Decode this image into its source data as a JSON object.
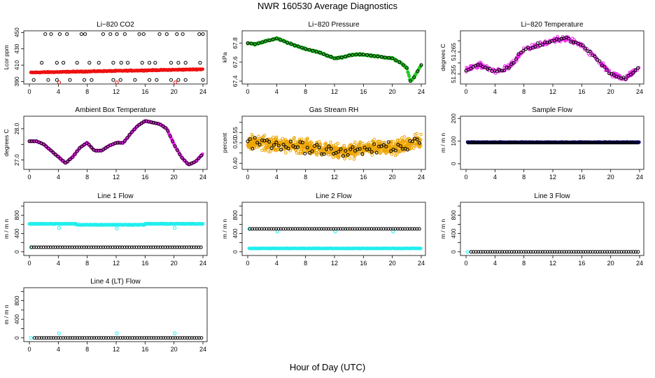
{
  "title": "NWR  160530  Average Diagnostics",
  "x_caption": "Hour of Day (UTC)",
  "colors": {
    "red": "#ee1111",
    "green": "#22cc22",
    "magenta": "#ee22ee",
    "orange": "#eea500",
    "navy": "#000088",
    "cyan": "#22eeee",
    "black": "#000000"
  },
  "chart_data": [
    {
      "type": "scatter",
      "title": "Li−820 CO2",
      "ylabel": "Lcor ppm",
      "xlim": [
        0,
        24
      ],
      "xticks": [
        "0",
        "4",
        "8",
        "12",
        "16",
        "20",
        "24"
      ],
      "ylim": [
        387,
        452
      ],
      "yticks": [
        390,
        410,
        430,
        450
      ],
      "series": [
        {
          "name": "co2-red",
          "color": "red",
          "kind": "band",
          "y0": 401,
          "y1": 405,
          "noise": 0.8
        },
        {
          "name": "co2-high",
          "color": "black",
          "kind": "points",
          "x": [
            2.2,
            3.0,
            4.2,
            5.2,
            7.2,
            7.7,
            10.2,
            11.2,
            12.1,
            13.2,
            15.2,
            15.8,
            18.0,
            19.0,
            20.4,
            21.2,
            23.5,
            24.0
          ],
          "y": [
            448,
            448,
            448,
            448,
            448,
            448,
            448,
            448,
            448,
            448,
            448,
            448,
            448,
            448,
            448,
            448,
            448,
            448
          ]
        },
        {
          "name": "co2-mid",
          "color": "black",
          "kind": "points",
          "x": [
            1.7,
            3.8,
            4.7,
            6.6,
            8.3,
            9.6,
            11.6,
            12.7,
            13.6,
            15.6,
            16.6,
            17.4,
            19.6,
            20.6,
            21.6,
            23.6
          ],
          "y": [
            413,
            413,
            413,
            413,
            413,
            413,
            413,
            413,
            413,
            413,
            413,
            413,
            413,
            413,
            413,
            413
          ]
        },
        {
          "name": "co2-low",
          "color": "black",
          "kind": "points",
          "x": [
            0.6,
            2.6,
            3.8,
            5.6,
            7.6,
            8.6,
            11.6,
            12.6,
            14.6,
            16.6,
            17.6,
            19.6,
            20.6,
            21.6,
            24.0
          ],
          "y": [
            392,
            392,
            392,
            392,
            392,
            392,
            392,
            392,
            392,
            392,
            392,
            392,
            392,
            392,
            392
          ]
        },
        {
          "name": "co2-lowered",
          "color": "red",
          "kind": "points",
          "x": [
            4.1,
            12.1,
            20.2
          ],
          "y": [
            389,
            389,
            389
          ]
        }
      ]
    },
    {
      "type": "line",
      "title": "Li−820 Pressure",
      "ylabel": "kPa",
      "xlim": [
        0,
        24
      ],
      "xticks": [
        "0",
        "4",
        "8",
        "12",
        "16",
        "20",
        "24"
      ],
      "ylim": [
        67.37,
        67.93
      ],
      "yticks": [
        67.4,
        67.6,
        67.8
      ],
      "series": [
        {
          "name": "pressure-green",
          "color": "green",
          "kind": "curve",
          "noise": 0.012,
          "x": [
            0,
            1,
            2,
            3,
            4,
            5,
            6,
            8,
            10,
            12,
            13,
            14,
            15,
            16,
            18,
            20,
            21,
            22,
            22.5,
            23,
            24
          ],
          "y": [
            67.8,
            67.79,
            67.81,
            67.83,
            67.85,
            67.82,
            67.79,
            67.74,
            67.7,
            67.64,
            67.65,
            67.67,
            67.68,
            67.68,
            67.66,
            67.64,
            67.6,
            67.54,
            67.4,
            67.44,
            67.57
          ]
        },
        {
          "name": "pressure-black",
          "color": "black",
          "kind": "curvepts",
          "step": 0.5
        }
      ]
    },
    {
      "type": "scatter",
      "title": "Li−820 Temperature",
      "ylabel": "degrees C",
      "xlim": [
        0,
        24
      ],
      "xticks": [
        "0",
        "4",
        "8",
        "12",
        "16",
        "20",
        "24"
      ],
      "ylim": [
        51.2505,
        51.2745
      ],
      "yticks": [
        51.255,
        51.26,
        51.265,
        51.27
      ],
      "yticklabels": [
        "51.255",
        "",
        "51.265",
        ""
      ],
      "series": [
        {
          "name": "temp-magenta",
          "color": "magenta",
          "kind": "cloud",
          "noise": 0.0018,
          "n": 320,
          "x": [
            0,
            2,
            4,
            6,
            8,
            10,
            12,
            14,
            16,
            18,
            20,
            22,
            24
          ],
          "y": [
            51.257,
            51.259,
            51.256,
            51.258,
            51.266,
            51.268,
            51.27,
            51.271,
            51.268,
            51.262,
            51.255,
            51.253,
            51.258
          ]
        },
        {
          "name": "temp-black",
          "color": "black",
          "kind": "curvepts",
          "step": 0.33,
          "jitter": 0.0012
        }
      ]
    },
    {
      "type": "line",
      "title": "Ambient Box Temperature",
      "ylabel": "degrees C",
      "xlim": [
        0,
        24
      ],
      "xticks": [
        "0",
        "4",
        "8",
        "12",
        "16",
        "20",
        "24"
      ],
      "ylim": [
        26.7,
        28.4
      ],
      "yticks": [
        27.0,
        27.5,
        28.0
      ],
      "yticklabels": [
        "27.0",
        "",
        "28.0"
      ],
      "series": [
        {
          "name": "box-magenta",
          "color": "magenta",
          "kind": "curve",
          "noise": 0.02,
          "x": [
            0,
            1,
            2,
            3,
            4,
            5,
            6,
            7,
            8,
            9,
            10,
            11,
            12,
            13,
            14,
            15,
            16,
            17,
            18,
            19,
            20,
            21,
            22,
            23,
            24
          ],
          "y": [
            27.6,
            27.6,
            27.5,
            27.3,
            27.1,
            26.9,
            27.1,
            27.4,
            27.55,
            27.3,
            27.3,
            27.45,
            27.55,
            27.55,
            27.85,
            28.1,
            28.25,
            28.2,
            28.15,
            28.0,
            27.5,
            27.1,
            26.85,
            26.95,
            27.2
          ]
        },
        {
          "name": "box-black",
          "color": "black",
          "kind": "curvepts",
          "step": 0.33
        }
      ]
    },
    {
      "type": "scatter",
      "title": "Gas Stream RH",
      "ylabel": "percent",
      "xlim": [
        0,
        24
      ],
      "xticks": [
        "0",
        "4",
        "8",
        "12",
        "16",
        "20",
        "24"
      ],
      "ylim": [
        0.37,
        0.63
      ],
      "yticks": [
        0.4,
        0.45,
        0.5,
        0.55,
        0.6
      ],
      "yticklabels": [
        "0.40",
        "",
        "0.50",
        "0.55",
        ""
      ],
      "series": [
        {
          "name": "rh-orange",
          "color": "orange",
          "kind": "cloud",
          "noise": 0.05,
          "n": 900,
          "x": [
            0,
            2,
            4,
            6,
            8,
            10,
            12,
            14,
            16,
            18,
            20,
            22,
            24
          ],
          "y": [
            0.5,
            0.5,
            0.49,
            0.49,
            0.48,
            0.47,
            0.46,
            0.46,
            0.47,
            0.48,
            0.48,
            0.49,
            0.51
          ]
        },
        {
          "name": "rh-black",
          "color": "black",
          "kind": "curvepts",
          "step": 0.33,
          "jitter": 0.04
        }
      ]
    },
    {
      "type": "line",
      "title": "Sample Flow",
      "ylabel": "m / m n",
      "xlim": [
        0,
        24
      ],
      "xticks": [
        "0",
        "4",
        "8",
        "12",
        "16",
        "20",
        "24"
      ],
      "ylim": [
        -25,
        210
      ],
      "yticks": [
        0,
        100,
        200
      ],
      "series": [
        {
          "name": "sample-navy",
          "color": "navy",
          "kind": "flat",
          "y": 95,
          "noise": 2
        },
        {
          "name": "sample-black",
          "color": "black",
          "kind": "flatpts",
          "y": 93,
          "step": 0.25
        }
      ]
    },
    {
      "type": "line",
      "title": "Line 1 Flow",
      "ylabel": "m / m n",
      "xlim": [
        0,
        24
      ],
      "xticks": [
        "0",
        "4",
        "8",
        "12",
        "16",
        "20",
        "24"
      ],
      "ylim": [
        -80,
        1080
      ],
      "yticks": [
        0,
        200,
        400,
        600,
        800,
        1000
      ],
      "yticklabels": [
        "0",
        "",
        "400",
        "",
        "800",
        ""
      ],
      "series": [
        {
          "name": "l1-cyan-band",
          "color": "cyan",
          "kind": "segments",
          "segs": [
            [
              0,
              6.5,
              610
            ],
            [
              6.5,
              16,
              590
            ],
            [
              16,
              24,
              610
            ]
          ],
          "noise": 8
        },
        {
          "name": "l1-cyan-dips",
          "color": "cyan",
          "kind": "points",
          "x": [
            4.1,
            12.1,
            20.1
          ],
          "y": [
            520,
            510,
            520
          ]
        },
        {
          "name": "l1-cyan-low",
          "color": "cyan",
          "kind": "points",
          "x": [
            0.2
          ],
          "y": [
            100
          ]
        },
        {
          "name": "l1-black",
          "color": "black",
          "kind": "flatpts",
          "y": 100,
          "step": 0.33
        }
      ]
    },
    {
      "type": "line",
      "title": "Line 2 Flow",
      "ylabel": "m / m n",
      "xlim": [
        0,
        24
      ],
      "xticks": [
        "0",
        "4",
        "8",
        "12",
        "16",
        "20",
        "24"
      ],
      "ylim": [
        -80,
        1080
      ],
      "yticks": [
        0,
        200,
        400,
        600,
        800,
        1000
      ],
      "yticklabels": [
        "0",
        "",
        "400",
        "",
        "800",
        ""
      ],
      "series": [
        {
          "name": "l2-cyan-low",
          "color": "cyan",
          "kind": "flat",
          "y": 75,
          "noise": 6
        },
        {
          "name": "l2-cyan-high",
          "color": "cyan",
          "kind": "points",
          "x": [
            0.2,
            4.1,
            12.1,
            20.1
          ],
          "y": [
            500,
            440,
            440,
            440
          ]
        },
        {
          "name": "l2-black",
          "color": "black",
          "kind": "flatpts",
          "y": 500,
          "step": 0.33
        }
      ]
    },
    {
      "type": "line",
      "title": "Line 3 Flow",
      "ylabel": "m / m n",
      "xlim": [
        0,
        24
      ],
      "xticks": [
        "0",
        "4",
        "8",
        "12",
        "16",
        "20",
        "24"
      ],
      "ylim": [
        -80,
        1080
      ],
      "yticks": [
        0,
        200,
        400,
        600,
        800,
        1000
      ],
      "yticklabels": [
        "0",
        "",
        "400",
        "",
        "800",
        ""
      ],
      "series": [
        {
          "name": "l3-cyan",
          "color": "cyan",
          "kind": "points",
          "x": [
            0.2
          ],
          "y": [
            0
          ]
        },
        {
          "name": "l3-black",
          "color": "black",
          "kind": "flatpts",
          "y": 0,
          "step": 0.33,
          "from": 0.7
        }
      ]
    },
    {
      "type": "line",
      "title": "Line 4 (LT) Flow",
      "ylabel": "m / m n",
      "xlim": [
        0,
        24
      ],
      "xticks": [
        "0",
        "4",
        "8",
        "12",
        "16",
        "20",
        "24"
      ],
      "ylim": [
        -80,
        1080
      ],
      "yticks": [
        0,
        200,
        400,
        600,
        800,
        1000
      ],
      "yticklabels": [
        "0",
        "",
        "400",
        "",
        "800",
        ""
      ],
      "series": [
        {
          "name": "l4-cyan",
          "color": "cyan",
          "kind": "points",
          "x": [
            0.2,
            4.1,
            12.1,
            20.1
          ],
          "y": [
            0,
            100,
            100,
            100
          ]
        },
        {
          "name": "l4-black",
          "color": "black",
          "kind": "flatpts",
          "y": 0,
          "step": 0.33,
          "from": 0.7
        }
      ]
    }
  ]
}
